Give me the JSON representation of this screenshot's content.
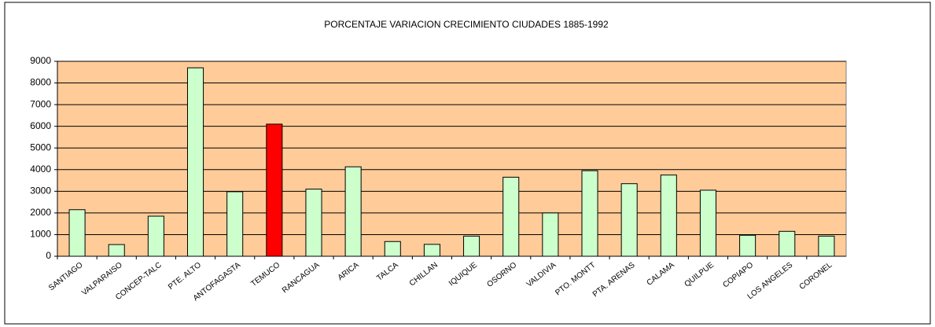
{
  "chart_data": {
    "type": "bar",
    "title": "PORCENTAJE VARIACION CRECIMIENTO CIUDADES 1885-1992",
    "categories": [
      "SANTIAGO",
      "VALPARAISO",
      "CONCEP-TALC",
      "PTE. ALTO",
      "ANTOFAGASTA",
      "TEMUCO",
      "RANCAGUA",
      "ARICA",
      "TALCA",
      "CHILLAN",
      "IQUIQUE",
      "OSORNO",
      "VALDIVIA",
      "PTO. MONTT",
      "PTA. ARENAS",
      "CALAMA",
      "QUILPUE",
      "COPIAPO",
      "LOS ANGELES",
      "CORONEL"
    ],
    "values": [
      2150,
      540,
      1850,
      8700,
      2980,
      6100,
      3100,
      4130,
      680,
      550,
      930,
      3650,
      2000,
      3950,
      3350,
      3750,
      3050,
      970,
      1150,
      930
    ],
    "colors": [
      "#ccffcc",
      "#ccffcc",
      "#ccffcc",
      "#ccffcc",
      "#ccffcc",
      "#ff0000",
      "#ccffcc",
      "#ccffcc",
      "#ccffcc",
      "#ccffcc",
      "#ccffcc",
      "#ccffcc",
      "#ccffcc",
      "#ccffcc",
      "#ccffcc",
      "#ccffcc",
      "#ccffcc",
      "#ccffcc",
      "#ccffcc",
      "#ccffcc"
    ],
    "plot_background": "#ffcc99",
    "ylim": [
      0,
      9000
    ],
    "yticks": [
      0,
      1000,
      2000,
      3000,
      4000,
      5000,
      6000,
      7000,
      8000,
      9000
    ],
    "grid": true
  }
}
